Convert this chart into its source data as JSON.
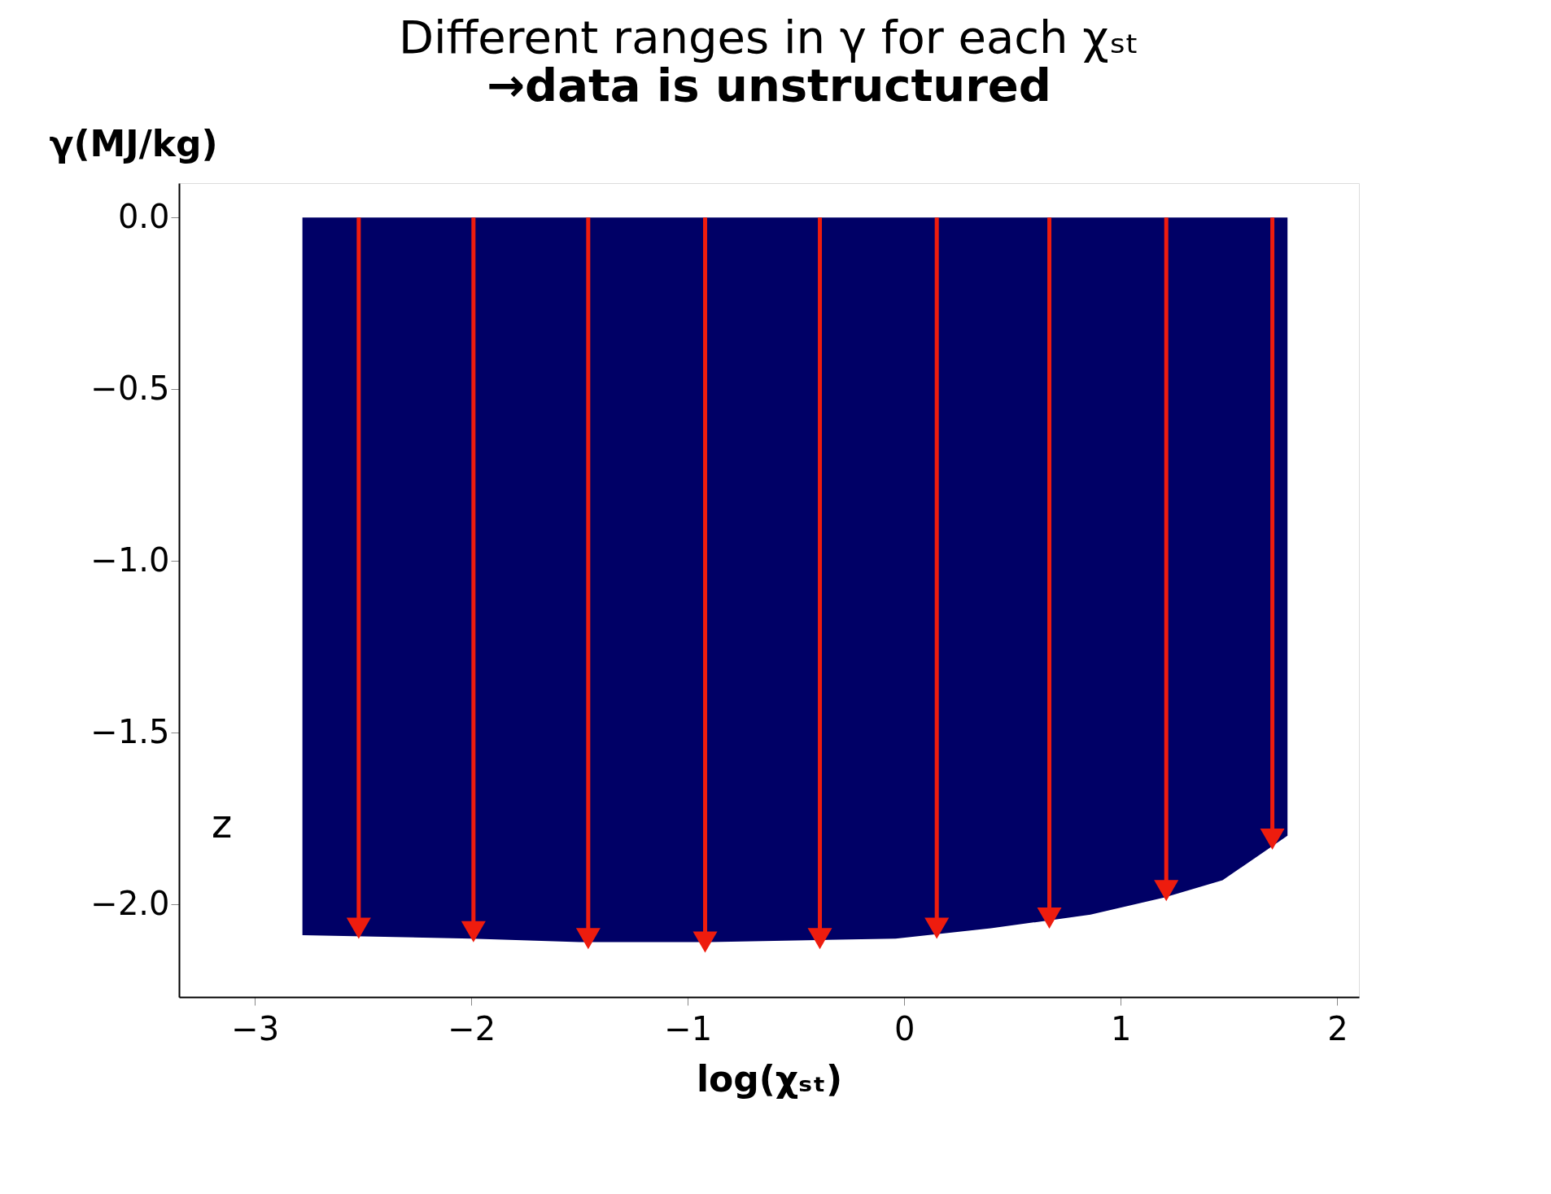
{
  "chart_data": {
    "type": "area",
    "title": "Different ranges in γ for each χₛₜ",
    "subtitle": "→data is unstructured",
    "xlabel": "log(χₛₜ)",
    "ylabel": "γ(MJ/kg)",
    "annotations": [
      "z"
    ],
    "series": [
      {
        "color": "#000066",
        "x": [
          -2.78,
          -2.0,
          -1.5,
          -0.9,
          -0.04,
          0.4,
          0.86,
          1.2,
          1.47,
          1.77
        ],
        "values": [
          -2.09,
          -2.1,
          -2.11,
          -2.11,
          -2.1,
          -2.07,
          -2.03,
          -1.98,
          -1.93,
          -1.8
        ]
      },
      {
        "type": "lollipop",
        "marker": "triangle",
        "color": "#ee1c0e",
        "x": [
          -2.52,
          -1.99,
          -1.46,
          -0.92,
          -0.39,
          0.15,
          0.67,
          1.21,
          1.7
        ],
        "values": [
          -2.07,
          -2.08,
          -2.1,
          -2.11,
          -2.1,
          -2.07,
          -2.04,
          -1.96,
          -1.81
        ]
      }
    ],
    "xlim": [
      -3.35,
      2.1
    ],
    "xticks": [
      -3,
      -2,
      -1,
      0,
      1,
      2
    ],
    "ylim": [
      -2.27,
      0.1
    ],
    "yticks": [
      {
        "value": 0,
        "label": "0.0"
      },
      -0.5,
      {
        "value": -1,
        "label": "−1.0"
      },
      -1.5,
      {
        "value": -2,
        "label": "−2.0"
      }
    ]
  }
}
